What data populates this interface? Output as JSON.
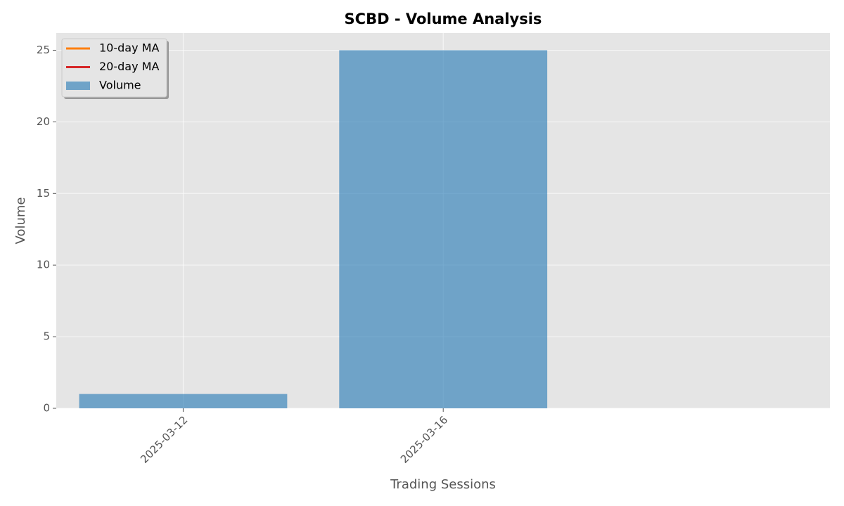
{
  "chart_data": {
    "type": "bar",
    "title": "SCBD - Volume Analysis",
    "x_label": "Trading Sessions",
    "y_label": "Volume",
    "categories": [
      "2025-03-12",
      "2025-03-16"
    ],
    "series": [
      {
        "name": "10-day MA",
        "color": "#ff7f0e",
        "kind": "line",
        "values": [
          null,
          null
        ]
      },
      {
        "name": "20-day MA",
        "color": "#d62728",
        "kind": "line",
        "values": [
          null,
          null
        ]
      },
      {
        "name": "Volume",
        "color": "#1f77b4",
        "kind": "bar",
        "opacity": 0.6,
        "values": [
          1,
          25
        ]
      }
    ],
    "ylim": [
      0,
      26.2
    ],
    "yticks": [
      0,
      5,
      10,
      15,
      20,
      25
    ],
    "grid": true,
    "legend": "upper left"
  }
}
